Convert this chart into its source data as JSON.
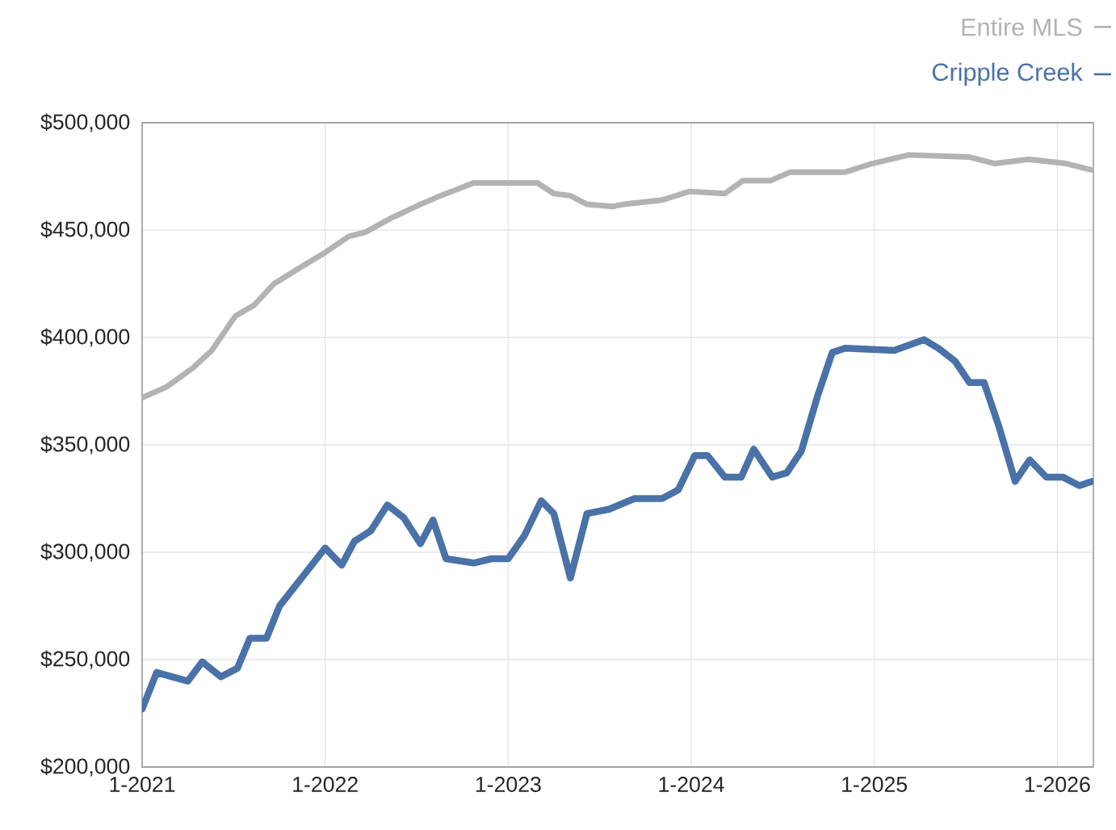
{
  "chart_data": {
    "type": "line",
    "legend": "top right",
    "grid": true,
    "xlim": [
      "2021-01-01",
      "2026-03-14"
    ],
    "xticks": [
      {
        "value": "2021-01-01",
        "label": "1-2021"
      },
      {
        "value": "2022-01-01",
        "label": "1-2022"
      },
      {
        "value": "2023-01-01",
        "label": "1-2023"
      },
      {
        "value": "2024-01-01",
        "label": "1-2024"
      },
      {
        "value": "2025-01-01",
        "label": "1-2025"
      },
      {
        "value": "2026-01-01",
        "label": "1-2026"
      }
    ],
    "ylim": [
      200000,
      500000
    ],
    "yticks": [
      {
        "value": 200000,
        "label": "$200,000"
      },
      {
        "value": 250000,
        "label": "$250,000"
      },
      {
        "value": 300000,
        "label": "$300,000"
      },
      {
        "value": 350000,
        "label": "$350,000"
      },
      {
        "value": 400000,
        "label": "$400,000"
      },
      {
        "value": 450000,
        "label": "$450,000"
      },
      {
        "value": 500000,
        "label": "$500,000"
      }
    ],
    "series": [
      {
        "name": "Entire MLS",
        "color": "#b3b3b3",
        "x": [
          "2021-01-01",
          "2021-02-19",
          "2021-04-13",
          "2021-05-20",
          "2021-07-06",
          "2021-08-12",
          "2021-09-21",
          "2021-11-15",
          "2021-12-28",
          "2022-02-17",
          "2022-03-22",
          "2022-05-16",
          "2022-07-10",
          "2022-08-19",
          "2022-10-24",
          "2022-12-28",
          "2023-02-28",
          "2023-04-02",
          "2023-05-05",
          "2023-06-07",
          "2023-07-28",
          "2023-08-19",
          "2023-11-04",
          "2023-12-28",
          "2024-03-08",
          "2024-04-13",
          "2024-06-07",
          "2024-07-17",
          "2024-11-04",
          "2024-12-28",
          "2025-03-11",
          "2025-07-10",
          "2025-08-30",
          "2025-11-04",
          "2026-01-19",
          "2026-03-11"
        ],
        "values": [
          372000,
          377000,
          386000,
          394000,
          410000,
          415000,
          425000,
          433000,
          439000,
          447000,
          449000,
          456000,
          462000,
          466000,
          472000,
          472000,
          472000,
          467000,
          466000,
          462000,
          461000,
          462000,
          464000,
          468000,
          467000,
          473000,
          473000,
          477000,
          477000,
          481000,
          485000,
          484000,
          481000,
          483000,
          481000,
          478000
        ]
      },
      {
        "name": "Cripple Creek",
        "color": "#4a72a8",
        "x": [
          "2021-01-01",
          "2021-01-30",
          "2021-04-02",
          "2021-05-01",
          "2021-06-07",
          "2021-07-10",
          "2021-08-04",
          "2021-09-06",
          "2021-10-02",
          "2021-11-15",
          "2022-01-01",
          "2022-02-03",
          "2022-02-28",
          "2022-04-02",
          "2022-05-05",
          "2022-06-07",
          "2022-07-10",
          "2022-08-04",
          "2022-08-30",
          "2022-10-24",
          "2022-11-29",
          "2023-01-01",
          "2023-02-03",
          "2023-03-08",
          "2023-04-02",
          "2023-05-05",
          "2023-06-07",
          "2023-07-21",
          "2023-09-10",
          "2023-11-04",
          "2023-12-06",
          "2024-01-08",
          "2024-02-03",
          "2024-03-08",
          "2024-04-10",
          "2024-05-05",
          "2024-06-11",
          "2024-07-10",
          "2024-08-08",
          "2024-09-10",
          "2024-10-09",
          "2024-11-04",
          "2025-02-10",
          "2025-04-10",
          "2025-05-09",
          "2025-06-11",
          "2025-07-10",
          "2025-08-08",
          "2025-09-06",
          "2025-10-09",
          "2025-11-07",
          "2025-12-10",
          "2026-01-12",
          "2026-02-14",
          "2026-03-11"
        ],
        "values": [
          227000,
          244000,
          240000,
          249000,
          242000,
          246000,
          260000,
          260000,
          275000,
          288000,
          302000,
          294000,
          305000,
          310000,
          322000,
          316000,
          304000,
          315000,
          297000,
          295000,
          297000,
          297000,
          308000,
          324000,
          318000,
          288000,
          318000,
          320000,
          325000,
          325000,
          329000,
          345000,
          345000,
          335000,
          335000,
          348000,
          335000,
          337000,
          347000,
          373000,
          393000,
          395000,
          394000,
          399000,
          395000,
          389000,
          379000,
          379000,
          359000,
          333000,
          343000,
          335000,
          335000,
          331000,
          333000
        ]
      }
    ]
  }
}
